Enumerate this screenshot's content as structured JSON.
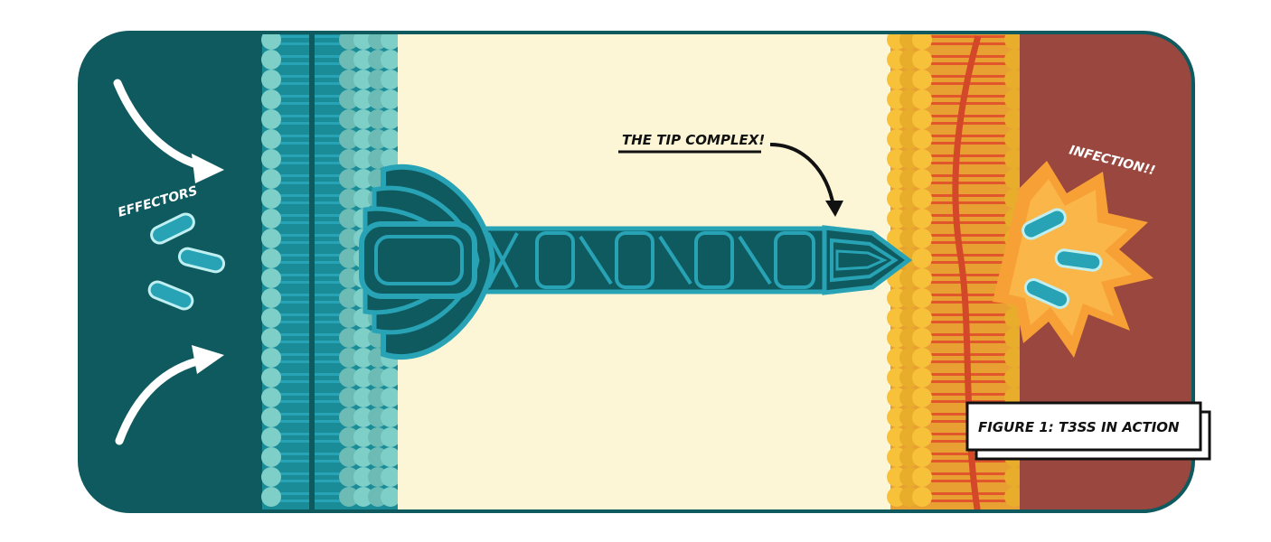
{
  "labels": {
    "effectors": "EFFECTORS",
    "tip_complex": "THE TIP COMPLEX!",
    "infection": "INFECTION!!",
    "figure_caption": "FIGURE 1: T3SS IN ACTION"
  },
  "colors": {
    "bacterium_interior": "#0f5a5e",
    "bacterial_membrane": "#7ecfc8",
    "bacterial_membrane_dark": "#2aa7b6",
    "periplasm_space": "#fdf6d6",
    "host_membrane": "#f7c23a",
    "host_membrane_tails": "#e1562a",
    "host_interior": "#9a4740",
    "needle_fill": "#0f5a5e",
    "needle_outline": "#27a3b5",
    "explosion": "#f7a035",
    "effector_fill": "#27a3b5",
    "effector_outline": "#bfeff0",
    "frame_outline": "#0f5a5e"
  }
}
